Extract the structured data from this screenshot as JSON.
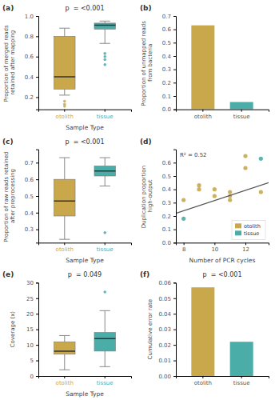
{
  "chart_data": [
    {
      "type": "box",
      "panel_label": "(a)",
      "title": "p  = <0.001",
      "y_label": "Proportion of merged reads retained after mapping",
      "x_label": "Sample Type",
      "categories": [
        "otolith",
        "tissue"
      ],
      "colors": [
        "#C9A84C",
        "#4AADA8"
      ],
      "boxes": [
        {
          "q1": 0.28,
          "median": 0.4,
          "q3": 0.8,
          "whisker_low": 0.22,
          "whisker_high": 0.88,
          "outliers": [
            0.16,
            0.13,
            0.11
          ]
        },
        {
          "q1": 0.87,
          "median": 0.91,
          "q3": 0.93,
          "whisker_low": 0.73,
          "whisker_high": 0.95,
          "outliers": [
            0.63,
            0.6,
            0.57,
            0.52
          ]
        }
      ],
      "ylim": [
        0.08,
        1.0
      ],
      "yticks": [
        0.2,
        0.4,
        0.6,
        0.8,
        {
          "value": 1.0,
          "label": "1.0"
        }
      ]
    },
    {
      "type": "bar",
      "panel_label": "(b)",
      "y_label": "Proportion of unmapped reads from bacteria",
      "categories": [
        "otolith",
        "tissue"
      ],
      "values": [
        0.63,
        0.055
      ],
      "colors": [
        "#C9A84C",
        "#4AADA8"
      ],
      "ylim": [
        0,
        0.7
      ],
      "yticks": [
        {
          "value": 0.0,
          "label": "0.0"
        },
        0.1,
        0.2,
        0.3,
        0.4,
        0.5,
        0.6,
        0.7
      ]
    },
    {
      "type": "box",
      "panel_label": "(c)",
      "title": "p  = <0.001",
      "y_label": "Proportion of raw reads retained after preprocessing",
      "x_label": "Sample Type",
      "categories": [
        "otolith",
        "tissue"
      ],
      "colors": [
        "#C9A84C",
        "#4AADA8"
      ],
      "boxes": [
        {
          "q1": 0.38,
          "median": 0.47,
          "q3": 0.6,
          "whisker_low": 0.24,
          "whisker_high": 0.73,
          "outliers": []
        },
        {
          "q1": 0.62,
          "median": 0.65,
          "q3": 0.68,
          "whisker_low": 0.56,
          "whisker_high": 0.73,
          "outliers": [
            0.28
          ]
        }
      ],
      "ylim": [
        0.22,
        0.78
      ],
      "yticks": [
        0.3,
        0.4,
        0.5,
        0.6,
        0.7
      ]
    },
    {
      "type": "scatter",
      "panel_label": "(d)",
      "y_label": "Duplication proportion high-output",
      "x_label": "Number of PCR cycles",
      "annotation": "R² = 0.52",
      "series": [
        {
          "name": "otolith",
          "color": "#C9A84C",
          "x": [
            8,
            9,
            9,
            10,
            10,
            11,
            11,
            11,
            12,
            12,
            13
          ],
          "values": [
            0.32,
            0.43,
            0.4,
            0.4,
            0.35,
            0.35,
            0.38,
            0.32,
            0.56,
            0.65,
            0.38
          ]
        },
        {
          "name": "tissue",
          "color": "#4AADA8",
          "x": [
            8,
            13
          ],
          "values": [
            0.18,
            0.63
          ]
        },
        {
          "type": "line",
          "color": "#555555",
          "x": [
            7.5,
            13.5
          ],
          "values": [
            0.22,
            0.45
          ]
        }
      ],
      "xlim": [
        7.5,
        13.5
      ],
      "xticks": [
        8,
        10,
        12
      ],
      "ylim": [
        0.0,
        0.7
      ],
      "yticks": [
        {
          "value": 0.0,
          "label": "0.0"
        },
        0.1,
        0.2,
        0.3,
        0.4,
        0.5,
        0.6
      ],
      "legend": "lower right"
    },
    {
      "type": "box",
      "panel_label": "(e)",
      "title": "p  = 0.049",
      "y_label": "Coverage (x)",
      "x_label": "Sample Type",
      "categories": [
        "otolith",
        "tissue"
      ],
      "colors": [
        "#C9A84C",
        "#4AADA8"
      ],
      "boxes": [
        {
          "q1": 7,
          "median": 8,
          "q3": 11,
          "whisker_low": 2,
          "whisker_high": 13,
          "outliers": []
        },
        {
          "q1": 8,
          "median": 12,
          "q3": 14,
          "whisker_low": 3,
          "whisker_high": 21,
          "outliers": [
            27
          ]
        }
      ],
      "ylim": [
        0,
        30
      ],
      "yticks": [
        0,
        5,
        10,
        15,
        20,
        25,
        30
      ]
    },
    {
      "type": "bar",
      "panel_label": "(f)",
      "title": "p  = <0.001",
      "y_label": "Cumulative error rate",
      "categories": [
        "otolith",
        "tissue"
      ],
      "values": [
        0.057,
        0.022
      ],
      "colors": [
        "#C9A84C",
        "#4AADA8"
      ],
      "ylim": [
        0,
        0.06
      ],
      "yticks": [
        {
          "value": 0.0,
          "label": "0.00"
        },
        0.01,
        0.02,
        0.03,
        0.04,
        0.05,
        0.06
      ]
    }
  ]
}
